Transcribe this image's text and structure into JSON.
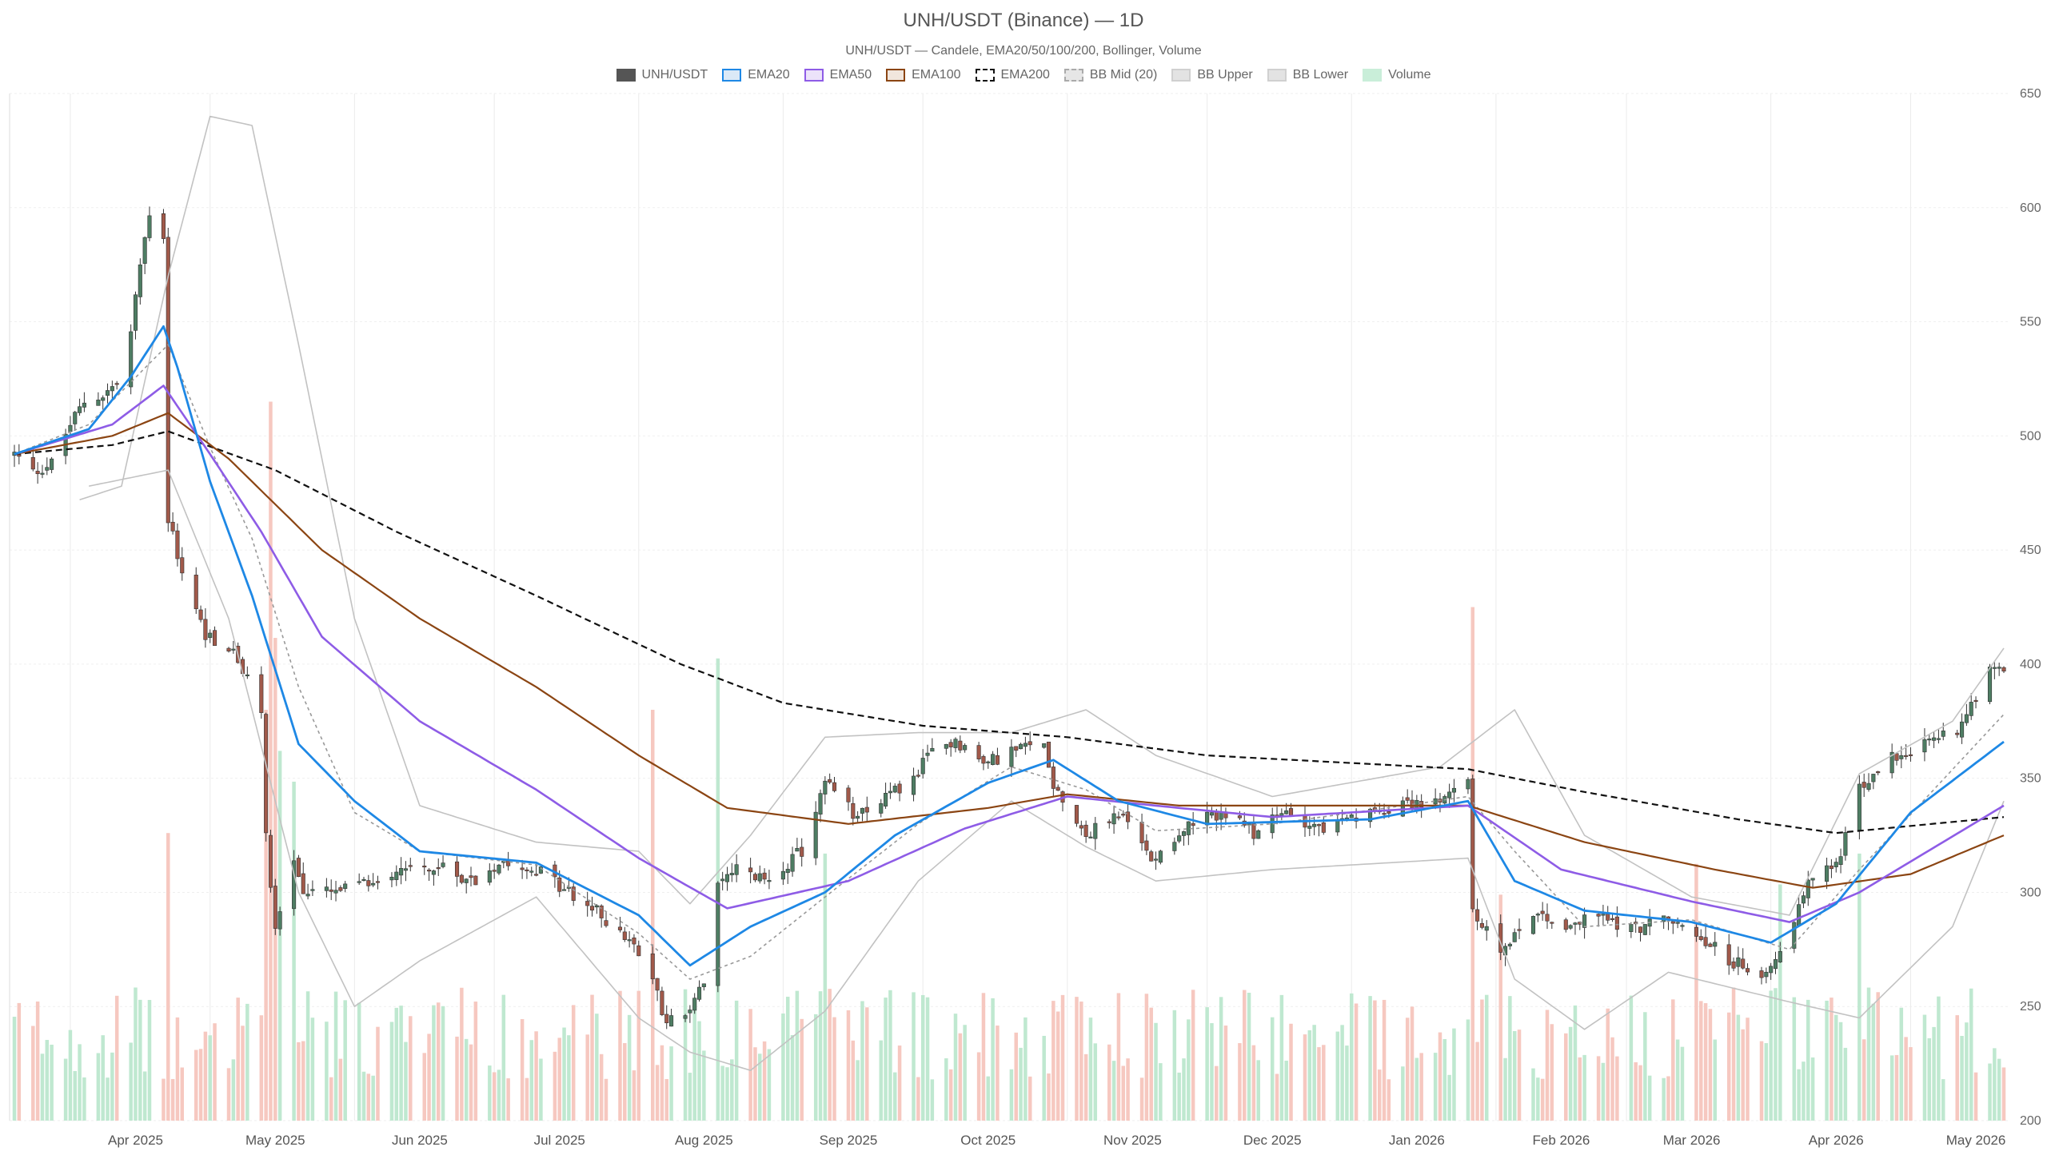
{
  "chart_data": {
    "type": "candlestick",
    "title": "UNH/USDT (Binance) — 1D",
    "subtitle": "UNH/USDT — Candele, EMA20/50/100/200, Bollinger, Volume",
    "y_axis": {
      "position": "right",
      "min": 200,
      "max": 650,
      "ticks": [
        200,
        250,
        300,
        350,
        400,
        450,
        500,
        550,
        600,
        650
      ]
    },
    "x_axis": {
      "labels": [
        "Apr 2025",
        "May 2025",
        "Jun 2025",
        "Jul 2025",
        "Aug 2025",
        "Sep 2025",
        "Oct 2025",
        "Nov 2025",
        "Dec 2025",
        "Jan 2026",
        "Feb 2026",
        "Mar 2026",
        "Apr 2026",
        "May 2026"
      ]
    },
    "grid": true,
    "legend": {
      "placement": "top-center",
      "items": [
        {
          "key": "price",
          "label": "UNH/USDT",
          "color": "#555555",
          "fill": "#555555",
          "style": "solid"
        },
        {
          "key": "ema20",
          "label": "EMA20",
          "color": "#1e88e5",
          "fill": "#dbe9f7",
          "style": "solid"
        },
        {
          "key": "ema50",
          "label": "EMA50",
          "color": "#8e5ce6",
          "fill": "#ece3fa",
          "style": "solid"
        },
        {
          "key": "ema100",
          "label": "EMA100",
          "color": "#8b4513",
          "fill": "#f1e6dd",
          "style": "solid"
        },
        {
          "key": "ema200",
          "label": "EMA200",
          "color": "#111111",
          "fill": "#ffffff",
          "style": "dashed"
        },
        {
          "key": "bbmid",
          "label": "BB Mid (20)",
          "color": "#aaaaaa",
          "fill": "#e6e6e6",
          "style": "dashed"
        },
        {
          "key": "bbup",
          "label": "BB Upper",
          "color": "#d0d0d0",
          "fill": "#e3e3e3",
          "style": "solid"
        },
        {
          "key": "bblow",
          "label": "BB Lower",
          "color": "#d0d0d0",
          "fill": "#e3e3e3",
          "style": "solid"
        },
        {
          "key": "volume",
          "label": "Volume",
          "color": "#c9eed9",
          "fill": "#c9eed9",
          "style": "solid"
        }
      ]
    },
    "colors": {
      "up": "#4e7d63",
      "down": "#a1594a",
      "vol_up": "#bfe8d0",
      "vol_down": "#f6c8c0"
    },
    "price_anchors": [
      [
        "2025-03-20",
        492
      ],
      [
        "2025-03-24",
        484
      ],
      [
        "2025-03-28",
        488
      ],
      [
        "2025-04-01",
        505
      ],
      [
        "2025-04-04",
        515
      ],
      [
        "2025-04-08",
        518
      ],
      [
        "2025-04-11",
        523
      ],
      [
        "2025-04-14",
        545
      ],
      [
        "2025-04-16",
        575
      ],
      [
        "2025-04-18",
        598
      ],
      [
        "2025-04-21",
        588
      ],
      [
        "2025-04-22",
        463
      ],
      [
        "2025-04-25",
        440
      ],
      [
        "2025-04-30",
        413
      ],
      [
        "2025-05-06",
        405
      ],
      [
        "2025-05-12",
        380
      ],
      [
        "2025-05-13",
        325
      ],
      [
        "2025-05-15",
        285
      ],
      [
        "2025-05-19",
        315
      ],
      [
        "2025-05-21",
        300
      ],
      [
        "2025-05-28",
        300
      ],
      [
        "2025-06-05",
        305
      ],
      [
        "2025-06-12",
        312
      ],
      [
        "2025-06-20",
        310
      ],
      [
        "2025-06-27",
        305
      ],
      [
        "2025-07-03",
        315
      ],
      [
        "2025-07-10",
        310
      ],
      [
        "2025-07-17",
        300
      ],
      [
        "2025-07-24",
        290
      ],
      [
        "2025-07-30",
        278
      ],
      [
        "2025-08-04",
        262
      ],
      [
        "2025-08-07",
        243
      ],
      [
        "2025-08-12",
        248
      ],
      [
        "2025-08-15",
        260
      ],
      [
        "2025-08-18",
        302
      ],
      [
        "2025-08-22",
        310
      ],
      [
        "2025-08-28",
        305
      ],
      [
        "2025-09-05",
        318
      ],
      [
        "2025-09-10",
        348
      ],
      [
        "2025-09-16",
        335
      ],
      [
        "2025-09-22",
        340
      ],
      [
        "2025-09-29",
        350
      ],
      [
        "2025-10-03",
        362
      ],
      [
        "2025-10-08",
        367
      ],
      [
        "2025-10-14",
        356
      ],
      [
        "2025-10-20",
        362
      ],
      [
        "2025-10-27",
        365
      ],
      [
        "2025-10-29",
        348
      ],
      [
        "2025-11-05",
        325
      ],
      [
        "2025-11-12",
        335
      ],
      [
        "2025-11-19",
        315
      ],
      [
        "2025-11-26",
        328
      ],
      [
        "2025-12-04",
        335
      ],
      [
        "2025-12-11",
        326
      ],
      [
        "2025-12-18",
        335
      ],
      [
        "2025-12-26",
        328
      ],
      [
        "2026-01-05",
        334
      ],
      [
        "2026-01-12",
        340
      ],
      [
        "2026-01-20",
        338
      ],
      [
        "2026-01-26",
        352
      ],
      [
        "2026-01-27",
        290
      ],
      [
        "2026-02-02",
        275
      ],
      [
        "2026-02-09",
        292
      ],
      [
        "2026-02-16",
        285
      ],
      [
        "2026-02-23",
        290
      ],
      [
        "2026-03-02",
        284
      ],
      [
        "2026-03-09",
        288
      ],
      [
        "2026-03-16",
        283
      ],
      [
        "2026-03-23",
        270
      ],
      [
        "2026-03-30",
        265
      ],
      [
        "2026-04-03",
        275
      ],
      [
        "2026-04-10",
        307
      ],
      [
        "2026-04-15",
        312
      ],
      [
        "2026-04-20",
        345
      ],
      [
        "2026-04-27",
        360
      ],
      [
        "2026-05-04",
        365
      ],
      [
        "2026-05-11",
        372
      ],
      [
        "2026-05-18",
        398
      ],
      [
        "2026-05-21",
        395
      ]
    ],
    "ema_anchors": {
      "ema20": [
        [
          "2025-03-20",
          492
        ],
        [
          "2025-04-05",
          503
        ],
        [
          "2025-04-14",
          526
        ],
        [
          "2025-04-21",
          548
        ],
        [
          "2025-04-24",
          530
        ],
        [
          "2025-05-01",
          480
        ],
        [
          "2025-05-10",
          430
        ],
        [
          "2025-05-20",
          365
        ],
        [
          "2025-06-01",
          340
        ],
        [
          "2025-06-15",
          318
        ],
        [
          "2025-07-10",
          313
        ],
        [
          "2025-08-01",
          290
        ],
        [
          "2025-08-12",
          268
        ],
        [
          "2025-08-25",
          285
        ],
        [
          "2025-09-10",
          300
        ],
        [
          "2025-09-25",
          325
        ],
        [
          "2025-10-15",
          348
        ],
        [
          "2025-10-29",
          358
        ],
        [
          "2025-11-12",
          340
        ],
        [
          "2025-12-01",
          330
        ],
        [
          "2026-01-05",
          332
        ],
        [
          "2026-01-26",
          340
        ],
        [
          "2026-02-05",
          305
        ],
        [
          "2026-02-20",
          292
        ],
        [
          "2026-03-15",
          287
        ],
        [
          "2026-04-01",
          278
        ],
        [
          "2026-04-15",
          295
        ],
        [
          "2026-05-01",
          335
        ],
        [
          "2026-05-21",
          366
        ]
      ],
      "ema50": [
        [
          "2025-03-20",
          492
        ],
        [
          "2025-04-10",
          505
        ],
        [
          "2025-04-21",
          522
        ],
        [
          "2025-05-01",
          492
        ],
        [
          "2025-05-12",
          458
        ],
        [
          "2025-05-25",
          412
        ],
        [
          "2025-06-15",
          375
        ],
        [
          "2025-07-10",
          345
        ],
        [
          "2025-08-01",
          315
        ],
        [
          "2025-08-20",
          293
        ],
        [
          "2025-09-15",
          305
        ],
        [
          "2025-10-10",
          328
        ],
        [
          "2025-11-01",
          342
        ],
        [
          "2025-11-20",
          338
        ],
        [
          "2025-12-15",
          333
        ],
        [
          "2026-01-26",
          338
        ],
        [
          "2026-02-15",
          310
        ],
        [
          "2026-03-15",
          296
        ],
        [
          "2026-04-05",
          287
        ],
        [
          "2026-04-20",
          300
        ],
        [
          "2026-05-21",
          338
        ]
      ],
      "ema100": [
        [
          "2025-03-20",
          492
        ],
        [
          "2025-04-10",
          500
        ],
        [
          "2025-04-22",
          510
        ],
        [
          "2025-05-05",
          490
        ],
        [
          "2025-05-25",
          450
        ],
        [
          "2025-06-15",
          420
        ],
        [
          "2025-07-10",
          390
        ],
        [
          "2025-08-01",
          360
        ],
        [
          "2025-08-20",
          337
        ],
        [
          "2025-09-15",
          330
        ],
        [
          "2025-10-15",
          337
        ],
        [
          "2025-11-01",
          343
        ],
        [
          "2025-11-25",
          338
        ],
        [
          "2026-01-26",
          338
        ],
        [
          "2026-02-20",
          322
        ],
        [
          "2026-03-20",
          310
        ],
        [
          "2026-04-10",
          302
        ],
        [
          "2026-05-01",
          308
        ],
        [
          "2026-05-21",
          325
        ]
      ],
      "ema200": [
        [
          "2025-03-20",
          492
        ],
        [
          "2025-04-10",
          496
        ],
        [
          "2025-04-22",
          502
        ],
        [
          "2025-05-15",
          485
        ],
        [
          "2025-06-10",
          458
        ],
        [
          "2025-07-10",
          430
        ],
        [
          "2025-08-10",
          400
        ],
        [
          "2025-09-01",
          383
        ],
        [
          "2025-10-01",
          373
        ],
        [
          "2025-11-01",
          368
        ],
        [
          "2025-12-01",
          360
        ],
        [
          "2026-01-26",
          354
        ],
        [
          "2026-02-20",
          344
        ],
        [
          "2026-03-25",
          332
        ],
        [
          "2026-04-15",
          326
        ],
        [
          "2026-05-21",
          333
        ]
      ],
      "bbmid": [
        [
          "2025-03-20",
          492
        ],
        [
          "2025-04-05",
          505
        ],
        [
          "2025-04-22",
          540
        ],
        [
          "2025-05-01",
          495
        ],
        [
          "2025-05-10",
          455
        ],
        [
          "2025-05-20",
          390
        ],
        [
          "2025-06-01",
          335
        ],
        [
          "2025-06-15",
          318
        ],
        [
          "2025-07-10",
          312
        ],
        [
          "2025-08-01",
          282
        ],
        [
          "2025-08-12",
          262
        ],
        [
          "2025-08-25",
          272
        ],
        [
          "2025-09-10",
          298
        ],
        [
          "2025-09-30",
          330
        ],
        [
          "2025-10-20",
          355
        ],
        [
          "2025-11-05",
          345
        ],
        [
          "2025-11-20",
          327
        ],
        [
          "2025-12-15",
          330
        ],
        [
          "2026-01-26",
          342
        ],
        [
          "2026-02-05",
          318
        ],
        [
          "2026-02-20",
          285
        ],
        [
          "2026-03-15",
          288
        ],
        [
          "2026-04-05",
          275
        ],
        [
          "2026-04-20",
          310
        ],
        [
          "2026-05-21",
          378
        ]
      ],
      "bbup": [
        [
          "2025-04-03",
          472
        ],
        [
          "2025-04-12",
          478
        ],
        [
          "2025-04-22",
          570
        ],
        [
          "2025-05-01",
          640
        ],
        [
          "2025-05-10",
          636
        ],
        [
          "2025-05-20",
          540
        ],
        [
          "2025-06-01",
          420
        ],
        [
          "2025-06-15",
          338
        ],
        [
          "2025-07-10",
          322
        ],
        [
          "2025-08-01",
          318
        ],
        [
          "2025-08-12",
          295
        ],
        [
          "2025-08-25",
          325
        ],
        [
          "2025-09-10",
          368
        ],
        [
          "2025-09-30",
          370
        ],
        [
          "2025-10-20",
          370
        ],
        [
          "2025-11-05",
          380
        ],
        [
          "2025-11-20",
          360
        ],
        [
          "2025-12-15",
          342
        ],
        [
          "2026-01-20",
          355
        ],
        [
          "2026-02-05",
          380
        ],
        [
          "2026-02-20",
          325
        ],
        [
          "2026-03-15",
          298
        ],
        [
          "2026-04-05",
          290
        ],
        [
          "2026-04-20",
          352
        ],
        [
          "2026-05-10",
          375
        ],
        [
          "2026-05-21",
          407
        ]
      ],
      "bblow": [
        [
          "2025-04-05",
          478
        ],
        [
          "2025-04-22",
          485
        ],
        [
          "2025-05-05",
          420
        ],
        [
          "2025-05-20",
          300
        ],
        [
          "2025-06-01",
          250
        ],
        [
          "2025-06-15",
          270
        ],
        [
          "2025-07-10",
          298
        ],
        [
          "2025-08-01",
          245
        ],
        [
          "2025-08-12",
          230
        ],
        [
          "2025-08-25",
          222
        ],
        [
          "2025-09-10",
          248
        ],
        [
          "2025-09-30",
          305
        ],
        [
          "2025-10-20",
          340
        ],
        [
          "2025-11-05",
          320
        ],
        [
          "2025-11-20",
          305
        ],
        [
          "2025-12-15",
          310
        ],
        [
          "2026-01-26",
          315
        ],
        [
          "2026-02-05",
          262
        ],
        [
          "2026-02-20",
          240
        ],
        [
          "2026-03-10",
          265
        ],
        [
          "2026-04-05",
          252
        ],
        [
          "2026-04-20",
          245
        ],
        [
          "2026-05-10",
          285
        ],
        [
          "2026-05-21",
          340
        ]
      ]
    },
    "volume_axis": {
      "max": 1000
    },
    "volume_spikes": [
      [
        "2025-04-22",
        280
      ],
      [
        "2025-05-13",
        400
      ],
      [
        "2025-05-14",
        700
      ],
      [
        "2025-05-15",
        470
      ],
      [
        "2025-05-16",
        360
      ],
      [
        "2025-05-19",
        330
      ],
      [
        "2025-08-04",
        400
      ],
      [
        "2025-08-18",
        450
      ],
      [
        "2025-09-10",
        260
      ],
      [
        "2026-01-27",
        500
      ],
      [
        "2026-02-02",
        220
      ],
      [
        "2026-04-03",
        230
      ],
      [
        "2026-04-20",
        260
      ],
      [
        "2026-03-16",
        250
      ]
    ]
  }
}
